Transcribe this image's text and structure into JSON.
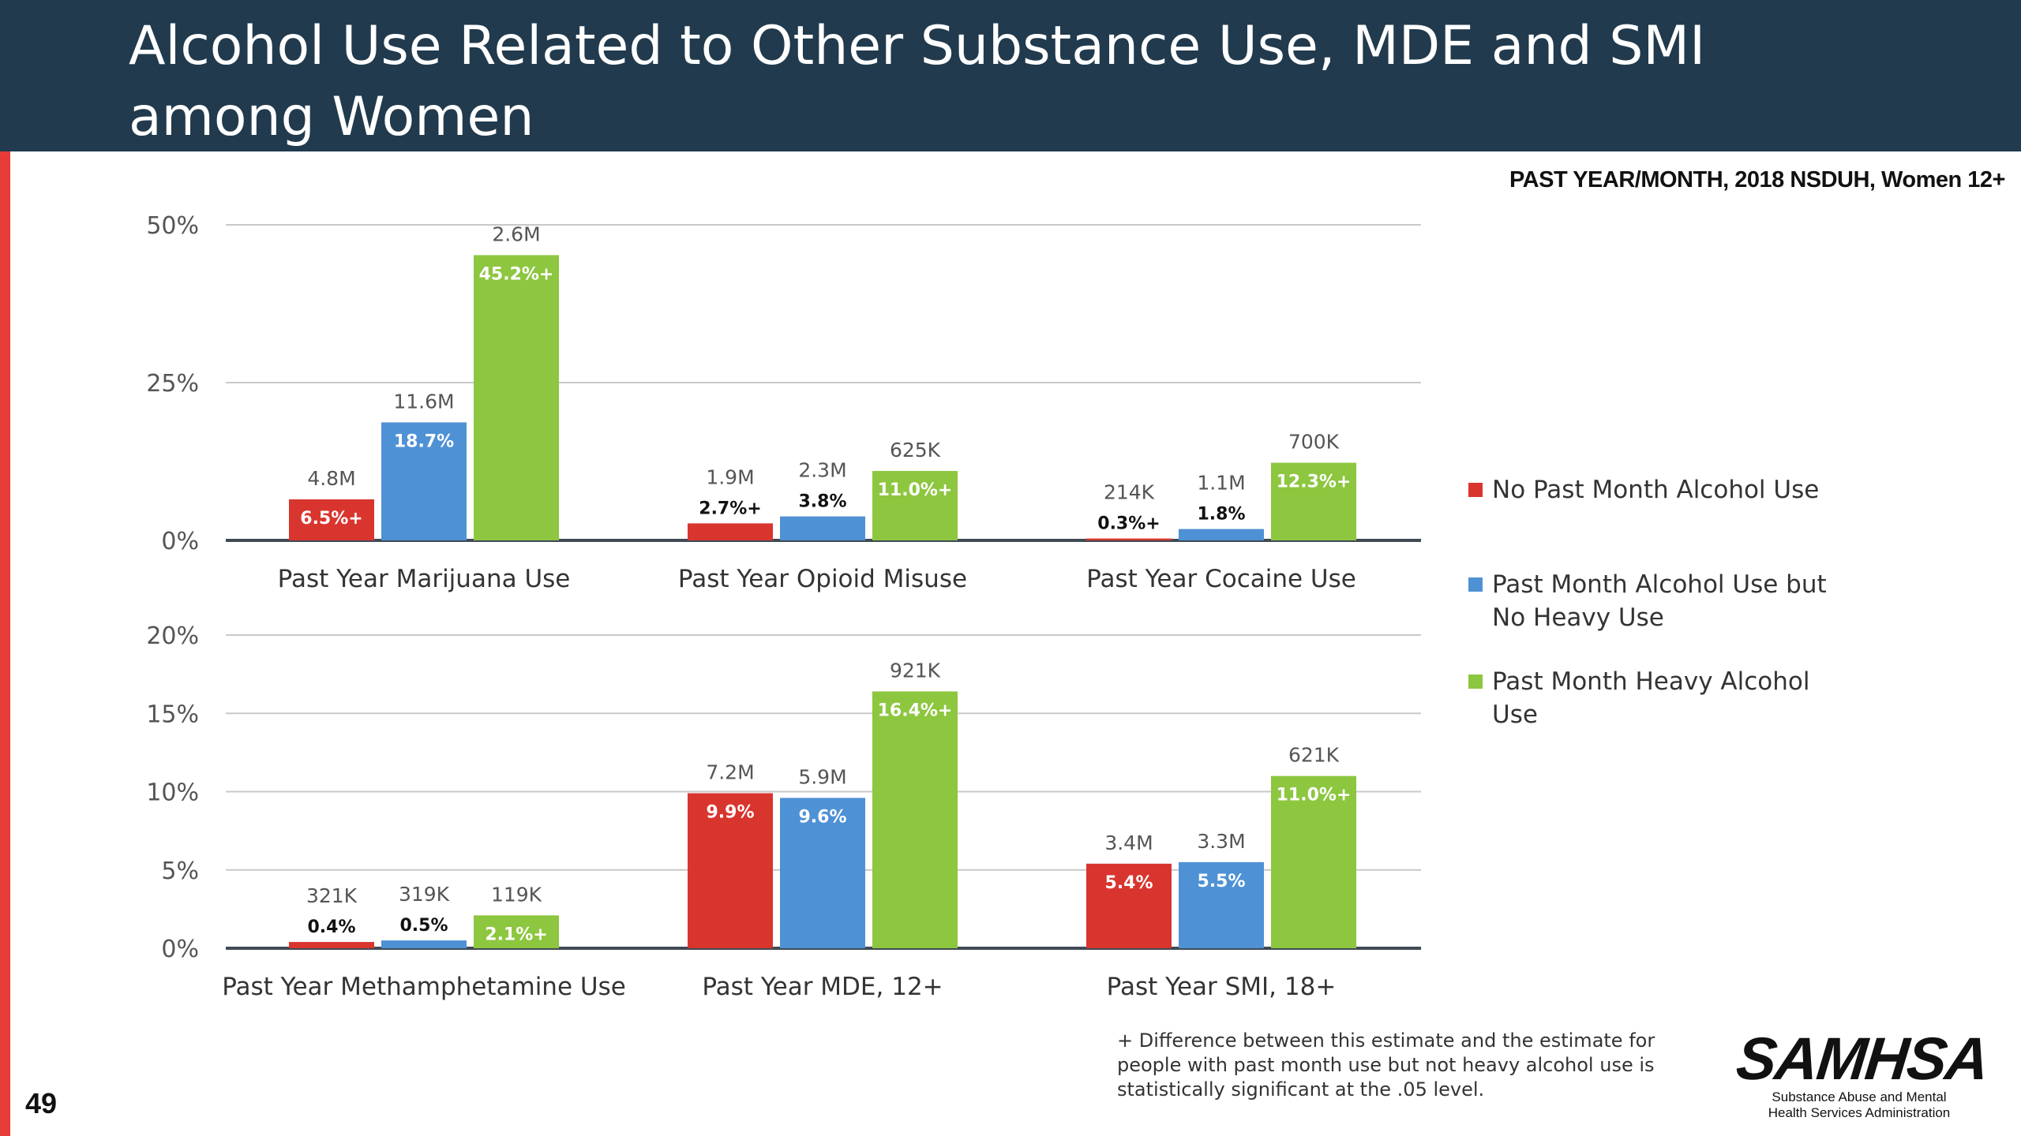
{
  "header": {
    "title": "Alcohol Use Related to Other Substance Use, MDE and SMI among Women"
  },
  "source_note": "PAST YEAR/MONTH, 2018 NSDUH, Women 12+",
  "page_number": "49",
  "footnote": {
    "lines": [
      "+ Difference between this estimate and the estimate for",
      "people with past month use but not heavy alcohol use is",
      "statistically significant at the .05 level."
    ]
  },
  "logo": {
    "name": "SAMHSA",
    "subtitle": "Substance Abuse and Mental Health Services Administration"
  },
  "colors": {
    "header_bg": "#213a4d",
    "accent_red": "#e63b36",
    "no_past_month": "#d9352f",
    "past_month_no_heavy": "#4f91d5",
    "heavy": "#8dc63f"
  },
  "legend": [
    {
      "label_lines": [
        "No Past Month Alcohol Use"
      ],
      "color": "#d9352f"
    },
    {
      "label_lines": [
        "Past Month Alcohol Use but",
        "No Heavy Use"
      ],
      "color": "#4f91d5"
    },
    {
      "label_lines": [
        "Past Month Heavy Alcohol",
        "Use"
      ],
      "color": "#8dc63f"
    }
  ],
  "chart_data": [
    {
      "type": "bar",
      "categories": [
        "Past Year Marijuana Use",
        "Past Year Opioid Misuse",
        "Past Year Cocaine Use"
      ],
      "ylim": [
        0,
        50
      ],
      "yticks": [
        0,
        25,
        50
      ],
      "ytick_labels": [
        "0%",
        "25%",
        "50%"
      ],
      "series": [
        {
          "name": "No Past Month Alcohol Use",
          "color": "#d9352f",
          "values": [
            6.5,
            2.7,
            0.3
          ],
          "value_labels": [
            "6.5%+",
            "2.7%+",
            "0.3%+"
          ],
          "counts": [
            "4.8M",
            "1.9M",
            "214K"
          ]
        },
        {
          "name": "Past Month Alcohol Use but No Heavy Use",
          "color": "#4f91d5",
          "values": [
            18.7,
            3.8,
            1.8
          ],
          "value_labels": [
            "18.7%",
            "3.8%",
            "1.8%"
          ],
          "counts": [
            "11.6M",
            "2.3M",
            "1.1M"
          ]
        },
        {
          "name": "Past Month Heavy Alcohol Use",
          "color": "#8dc63f",
          "values": [
            45.2,
            11.0,
            12.3
          ],
          "value_labels": [
            "45.2%+",
            "11.0%+",
            "12.3%+"
          ],
          "counts": [
            "2.6M",
            "625K",
            "700K"
          ]
        }
      ]
    },
    {
      "type": "bar",
      "categories": [
        "Past Year Methamphetamine Use",
        "Past Year MDE, 12+",
        "Past Year SMI, 18+"
      ],
      "ylim": [
        0,
        20
      ],
      "yticks": [
        0,
        5,
        10,
        15,
        20
      ],
      "ytick_labels": [
        "0%",
        "5%",
        "10%",
        "15%",
        "20%"
      ],
      "series": [
        {
          "name": "No Past Month Alcohol Use",
          "color": "#d9352f",
          "values": [
            0.4,
            9.9,
            5.4
          ],
          "value_labels": [
            "0.4%",
            "9.9%",
            "5.4%"
          ],
          "counts": [
            "321K",
            "7.2M",
            "3.4M"
          ]
        },
        {
          "name": "Past Month Alcohol Use but No Heavy Use",
          "color": "#4f91d5",
          "values": [
            0.5,
            9.6,
            5.5
          ],
          "value_labels": [
            "0.5%",
            "9.6%",
            "5.5%"
          ],
          "counts": [
            "319K",
            "5.9M",
            "3.3M"
          ]
        },
        {
          "name": "Past Month Heavy Alcohol Use",
          "color": "#8dc63f",
          "values": [
            2.1,
            16.4,
            11.0
          ],
          "value_labels": [
            "2.1%+",
            "16.4%+",
            "11.0%+"
          ],
          "counts": [
            "119K",
            "921K",
            "621K"
          ]
        }
      ]
    }
  ]
}
